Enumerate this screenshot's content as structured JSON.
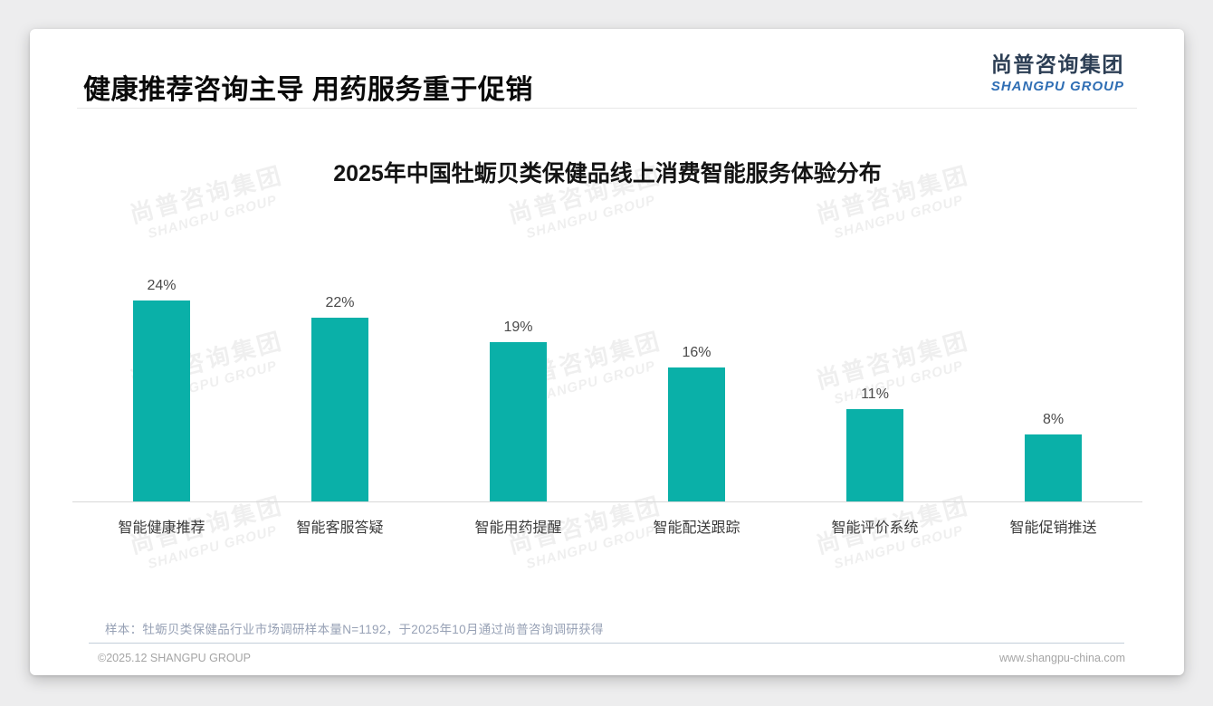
{
  "page": {
    "heading": "健康推荐咨询主导 用药服务重于促销",
    "logo": {
      "cn": "尚普咨询集团",
      "en": "SHANGPU GROUP"
    },
    "watermark": {
      "line1": "尚普咨询集团",
      "line2": "SHANGPU GROUP"
    },
    "footnote": "样本：牡蛎贝类保健品行业市场调研样本量N=1192，于2025年10月通过尚普咨询调研获得",
    "footer": {
      "left": "©2025.12 SHANGPU GROUP",
      "right": "www.shangpu-china.com"
    }
  },
  "colors": {
    "bar": "#0ab0a8",
    "logo_cn": "#2c3e54",
    "logo_en": "#2f6eb4"
  },
  "chart_data": {
    "type": "bar",
    "title": "2025年中国牡蛎贝类保健品线上消费智能服务体验分布",
    "categories": [
      "智能健康推荐",
      "智能客服答疑",
      "智能用药提醒",
      "智能配送跟踪",
      "智能评价系统",
      "智能促销推送"
    ],
    "values": [
      24,
      22,
      19,
      16,
      11,
      8
    ],
    "value_labels": [
      "24%",
      "22%",
      "19%",
      "16%",
      "11%",
      "8%"
    ],
    "unit": "%",
    "xlabel": "",
    "ylabel": "",
    "ylim": [
      0,
      26
    ],
    "grid": false,
    "legend": "none",
    "bar_color": "#0ab0a8"
  }
}
